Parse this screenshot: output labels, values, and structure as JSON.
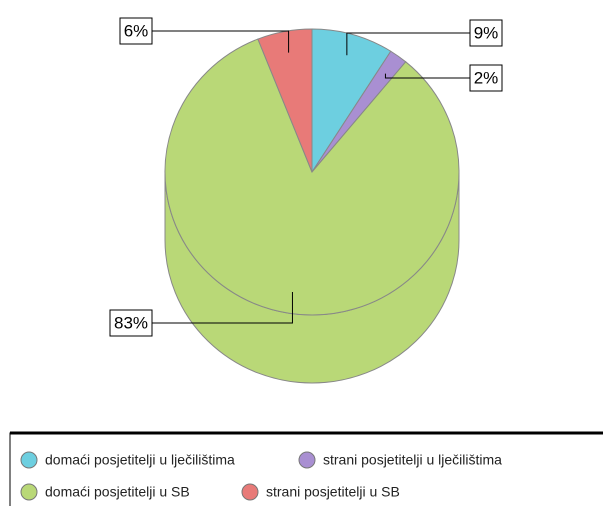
{
  "chart_data": {
    "type": "pie",
    "categories": [
      "domaći posjetitelji u lječilištima",
      "strani posjetitelji u lječilištima",
      "domaći posjetitelji u SB",
      "strani posjetitelji u SB"
    ],
    "values": [
      9,
      2,
      83,
      6
    ],
    "value_labels": [
      "9%",
      "2%",
      "83%",
      "6%"
    ],
    "colors": [
      "#6dcfe0",
      "#a98fd2",
      "#b9d877",
      "#e87a78"
    ]
  }
}
